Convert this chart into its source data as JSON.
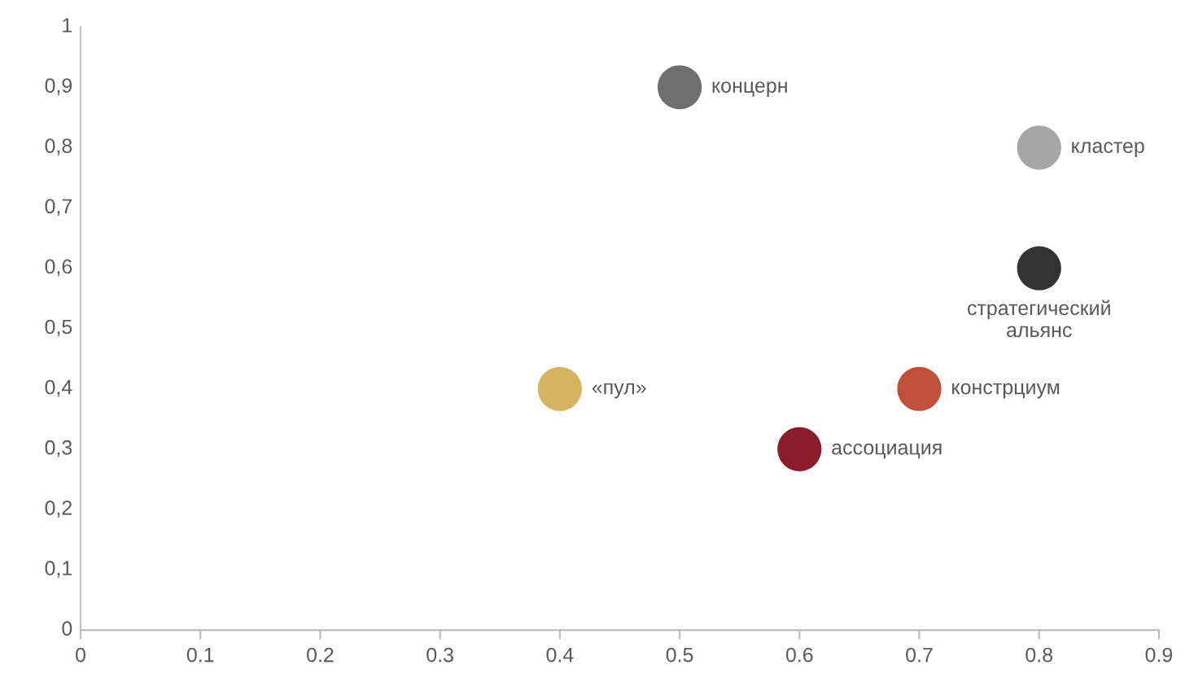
{
  "chart_data": {
    "type": "scatter",
    "marker": "circle",
    "grid": false,
    "legend": false,
    "xlim": [
      0,
      0.9
    ],
    "xticks": [
      0,
      0.1,
      0.2,
      0.3,
      0.4,
      0.5,
      0.6,
      0.7,
      0.8,
      0.9
    ],
    "ylim": [
      0,
      1
    ],
    "yticks": [
      0,
      {
        "value": 0.1,
        "label": "0,1"
      },
      {
        "value": 0.2,
        "label": "0,2"
      },
      {
        "value": 0.3,
        "label": "0,3"
      },
      {
        "value": 0.4,
        "label": "0,4"
      },
      {
        "value": 0.5,
        "label": "0,5"
      },
      {
        "value": 0.6,
        "label": "0,6"
      },
      {
        "value": 0.7,
        "label": "0,7"
      },
      {
        "value": 0.8,
        "label": "0,8"
      },
      {
        "value": 0.9,
        "label": "0,9"
      },
      1
    ],
    "series": [
      {
        "name": "концерн",
        "color": "#6f6f6f",
        "x": [
          0.5
        ],
        "values": [
          0.9
        ]
      },
      {
        "name": "кластер",
        "color": "#a6a6a6",
        "x": [
          0.8
        ],
        "values": [
          0.8
        ]
      },
      {
        "name": "стратегический\nальянс",
        "color": "#333333",
        "x": [
          0.8
        ],
        "values": [
          0.6
        ]
      },
      {
        "name": "«пул»",
        "color": "#d4b461",
        "x": [
          0.4
        ],
        "values": [
          0.4
        ]
      },
      {
        "name": "констрциум",
        "color": "#c0503a",
        "x": [
          0.7
        ],
        "values": [
          0.4
        ]
      },
      {
        "name": "ассоциация",
        "color": "#8b1c2c",
        "x": [
          0.6
        ],
        "values": [
          0.3
        ]
      }
    ]
  }
}
